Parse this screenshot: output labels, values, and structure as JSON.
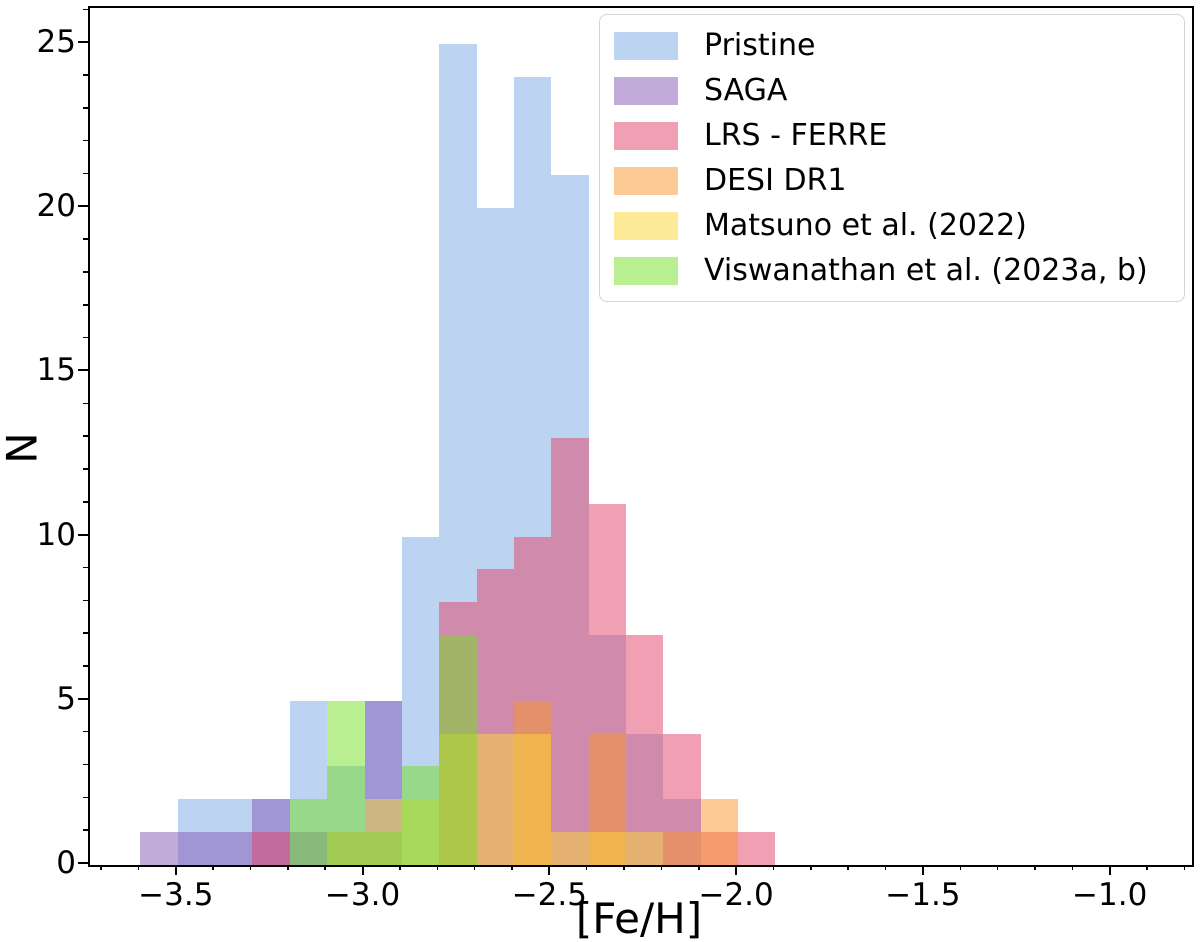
{
  "chart_data": {
    "type": "histogram",
    "title": "",
    "xlabel": "[Fe/H]",
    "ylabel": "N",
    "xlim": [
      -3.735,
      -0.785
    ],
    "ylim": [
      0,
      26.1
    ],
    "grid": false,
    "legend_position": "upper right",
    "bar_alpha": 0.5,
    "bin_start": -3.6,
    "bin_width": 0.1,
    "x_ticks": [
      {
        "value": -3.5,
        "label": "−3.5"
      },
      {
        "value": -3.0,
        "label": "−3.0"
      },
      {
        "value": -2.5,
        "label": "−2.5"
      },
      {
        "value": -2.0,
        "label": "−2.0"
      },
      {
        "value": -1.5,
        "label": "−1.5"
      },
      {
        "value": -1.0,
        "label": "−1.0"
      }
    ],
    "y_ticks": [
      {
        "value": 0,
        "label": "0"
      },
      {
        "value": 5,
        "label": "5"
      },
      {
        "value": 10,
        "label": "10"
      },
      {
        "value": 15,
        "label": "15"
      },
      {
        "value": 20,
        "label": "20"
      },
      {
        "value": 25,
        "label": "25"
      }
    ],
    "x_minor_step": 0.1,
    "y_minor_step": 1,
    "series": [
      {
        "name": "Pristine",
        "color": "#7BA7E5",
        "counts": [
          0,
          2,
          2,
          2,
          5,
          3,
          5,
          10,
          25,
          20,
          24,
          21,
          7,
          4,
          2,
          0,
          0,
          0
        ]
      },
      {
        "name": "SAGA",
        "color": "#8359B3",
        "counts": [
          1,
          1,
          1,
          2,
          1,
          1,
          5,
          0,
          0,
          0,
          0,
          0,
          0,
          0,
          0,
          0,
          0,
          0
        ]
      },
      {
        "name": "LRS - FERRE",
        "color": "#E14165",
        "counts": [
          0,
          0,
          0,
          1,
          0,
          0,
          0,
          0,
          8,
          9,
          10,
          13,
          11,
          7,
          4,
          1,
          1,
          0
        ]
      },
      {
        "name": "DESI DR1",
        "color": "#F99529",
        "counts": [
          0,
          0,
          0,
          0,
          0,
          0,
          0,
          0,
          0,
          0,
          5,
          0,
          4,
          0,
          1,
          2,
          0,
          0
        ]
      },
      {
        "name": "Matsuno et al. (2022)",
        "color": "#FBD733",
        "counts": [
          0,
          0,
          0,
          0,
          0,
          1,
          2,
          2,
          4,
          4,
          4,
          1,
          1,
          1,
          0,
          0,
          0,
          0
        ]
      },
      {
        "name": "Viswanathan et al. (2023a, b)",
        "color": "#73DD23",
        "counts": [
          0,
          0,
          0,
          0,
          2,
          5,
          1,
          3,
          7,
          0,
          0,
          0,
          0,
          0,
          0,
          0,
          0,
          0
        ]
      }
    ]
  }
}
